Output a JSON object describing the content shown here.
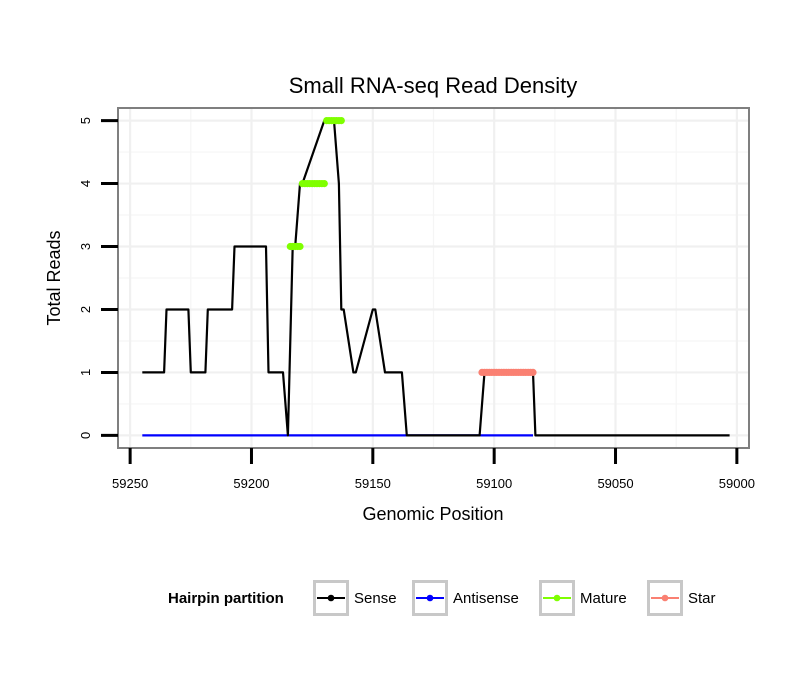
{
  "chart_data": {
    "type": "line",
    "title": "Small RNA-seq Read Density",
    "xlabel": "Genomic Position",
    "ylabel": "Total Reads",
    "xlim": [
      59255,
      58995
    ],
    "x_reversed": true,
    "ylim": [
      -0.2,
      5.2
    ],
    "xticks": [
      59250,
      59200,
      59150,
      59100,
      59050,
      59000
    ],
    "yticks": [
      0,
      1,
      2,
      3,
      4,
      5
    ],
    "grid": true,
    "legend": {
      "title": "Hairpin partition",
      "position": "bottom",
      "entries": [
        {
          "name": "Sense",
          "color": "#000000"
        },
        {
          "name": "Antisense",
          "color": "#0000ff"
        },
        {
          "name": "Mature",
          "color": "#7fff00"
        },
        {
          "name": "Star",
          "color": "#fa8072"
        }
      ]
    },
    "series": [
      {
        "name": "Sense",
        "color": "#000000",
        "style": "line",
        "x": [
          59245,
          59236,
          59235,
          59226,
          59225,
          59219,
          59218,
          59208,
          59207,
          59194,
          59193,
          59187,
          59185,
          59183,
          59182,
          59180,
          59179,
          59170,
          59168,
          59166,
          59164,
          59163,
          59162,
          59158,
          59157,
          59150,
          59149,
          59145,
          59144,
          59138,
          59136,
          59134,
          59133,
          59106,
          59104,
          59084,
          59083,
          59003
        ],
        "y": [
          1,
          1,
          2,
          2,
          1,
          1,
          2,
          2,
          3,
          3,
          1,
          1,
          0,
          3,
          3,
          4,
          4,
          5,
          5,
          5,
          4,
          2,
          2,
          1,
          1,
          2,
          2,
          1,
          1,
          1,
          0,
          0,
          0,
          0,
          1,
          1,
          0,
          0
        ]
      },
      {
        "name": "Antisense",
        "color": "#0000ff",
        "style": "line",
        "x": [
          59245,
          59084
        ],
        "y": [
          0,
          0
        ]
      },
      {
        "name": "Mature",
        "color": "#7fff00",
        "style": "points",
        "segments": [
          {
            "x_start": 59184,
            "x_end": 59180,
            "y": 3
          },
          {
            "x_start": 59179,
            "x_end": 59170,
            "y": 4
          },
          {
            "x_start": 59169,
            "x_end": 59163,
            "y": 5
          }
        ]
      },
      {
        "name": "Star",
        "color": "#fa8072",
        "style": "points",
        "segments": [
          {
            "x_start": 59105,
            "x_end": 59084,
            "y": 1
          }
        ]
      }
    ]
  }
}
